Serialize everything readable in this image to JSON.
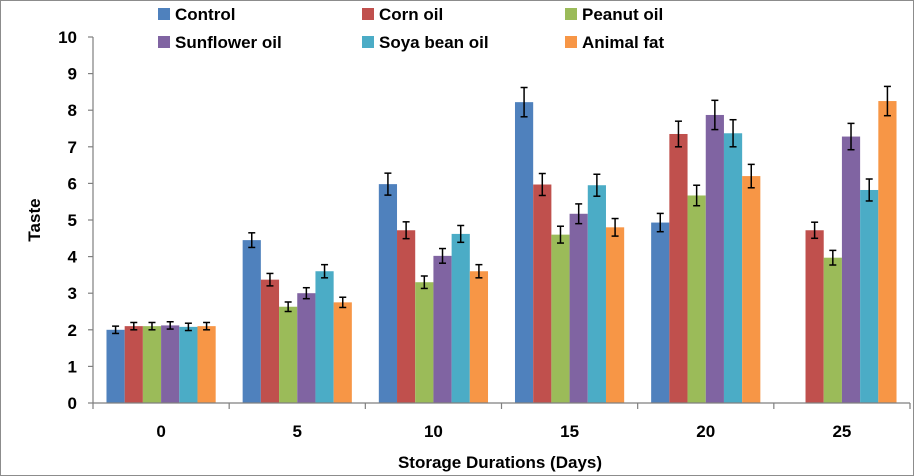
{
  "chart_data": {
    "type": "bar",
    "title": "",
    "xlabel": "Storage Durations (Days)",
    "ylabel": "Taste",
    "ylim": [
      0,
      10
    ],
    "yticks": [
      "0",
      "1",
      "2",
      "3",
      "4",
      "5",
      "6",
      "7",
      "8",
      "9",
      "10"
    ],
    "categories": [
      "0",
      "5",
      "10",
      "15",
      "20",
      "25"
    ],
    "grid": false,
    "legend_position": "top",
    "series": [
      {
        "name": "Control",
        "color": "#4f81bd",
        "values": [
          2.0,
          4.45,
          5.98,
          8.22,
          4.93,
          null
        ],
        "errors": [
          0.1,
          0.2,
          0.3,
          0.4,
          0.25,
          null
        ]
      },
      {
        "name": "Corn oil",
        "color": "#c0504d",
        "values": [
          2.1,
          3.37,
          4.72,
          5.97,
          7.35,
          4.72
        ],
        "errors": [
          0.1,
          0.17,
          0.23,
          0.3,
          0.35,
          0.22
        ]
      },
      {
        "name": "Peanut oil",
        "color": "#9bbb59",
        "values": [
          2.1,
          2.63,
          3.3,
          4.6,
          5.67,
          3.97
        ],
        "errors": [
          0.1,
          0.13,
          0.17,
          0.23,
          0.28,
          0.2
        ]
      },
      {
        "name": "Sunflower oil",
        "color": "#8064a2",
        "values": [
          2.12,
          3.0,
          4.02,
          5.17,
          7.87,
          7.28
        ],
        "errors": [
          0.1,
          0.15,
          0.2,
          0.27,
          0.4,
          0.36
        ]
      },
      {
        "name": "Soya bean oil",
        "color": "#4bacc6",
        "values": [
          2.08,
          3.6,
          4.62,
          5.95,
          7.37,
          5.82
        ],
        "errors": [
          0.1,
          0.18,
          0.23,
          0.3,
          0.37,
          0.3
        ]
      },
      {
        "name": "Animal fat",
        "color": "#f79646",
        "values": [
          2.1,
          2.75,
          3.6,
          4.8,
          6.2,
          8.25
        ],
        "errors": [
          0.1,
          0.14,
          0.18,
          0.24,
          0.32,
          0.4
        ]
      }
    ]
  }
}
